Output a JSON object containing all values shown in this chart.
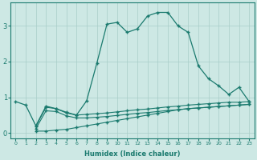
{
  "xlabel": "Humidex (Indice chaleur)",
  "line_color": "#1a7a6e",
  "bg_color": "#cde8e4",
  "grid_color": "#a8cec8",
  "xlim": [
    -0.5,
    23.5
  ],
  "ylim": [
    -0.15,
    3.65
  ],
  "xticks": [
    0,
    1,
    2,
    3,
    4,
    5,
    6,
    7,
    8,
    9,
    10,
    11,
    12,
    13,
    14,
    15,
    16,
    17,
    18,
    19,
    20,
    21,
    22,
    23
  ],
  "yticks": [
    0,
    1,
    2,
    3
  ],
  "curve1_x": [
    0,
    1,
    2,
    3,
    4,
    5,
    6,
    7,
    8,
    9,
    10,
    11,
    12,
    13,
    14,
    15,
    16,
    17,
    18,
    19,
    20,
    21,
    22,
    23
  ],
  "curve1_y": [
    0.88,
    0.78,
    0.2,
    0.75,
    0.68,
    0.58,
    0.5,
    0.9,
    1.95,
    3.05,
    3.1,
    2.82,
    2.92,
    3.28,
    3.38,
    3.38,
    3.0,
    2.82,
    1.88,
    1.52,
    1.32,
    1.08,
    1.28,
    0.88
  ],
  "curve2_x": [
    2,
    3,
    4,
    5,
    6,
    7,
    8,
    9,
    10,
    11,
    12,
    13,
    14,
    15,
    16,
    17,
    18,
    19,
    20,
    21,
    22,
    23
  ],
  "curve2_y": [
    0.18,
    0.72,
    0.68,
    0.56,
    0.5,
    0.52,
    0.54,
    0.56,
    0.59,
    0.62,
    0.65,
    0.67,
    0.7,
    0.73,
    0.75,
    0.78,
    0.8,
    0.82,
    0.84,
    0.86,
    0.86,
    0.88
  ],
  "curve3_x": [
    2,
    3,
    4,
    5,
    6,
    7,
    8,
    9,
    10,
    11,
    12,
    13,
    14,
    15,
    16,
    17,
    18,
    19,
    20,
    21,
    22,
    23
  ],
  "curve3_y": [
    0.12,
    0.62,
    0.6,
    0.48,
    0.42,
    0.42,
    0.44,
    0.46,
    0.49,
    0.52,
    0.55,
    0.57,
    0.6,
    0.63,
    0.65,
    0.68,
    0.7,
    0.72,
    0.74,
    0.76,
    0.78,
    0.8
  ],
  "curve4_x": [
    2,
    3,
    4,
    5,
    6,
    7,
    8,
    9,
    10,
    11,
    12,
    13,
    14,
    15,
    16,
    17,
    18,
    19,
    20,
    21,
    22,
    23
  ],
  "curve4_y": [
    0.05,
    0.05,
    0.08,
    0.1,
    0.15,
    0.2,
    0.25,
    0.3,
    0.35,
    0.4,
    0.45,
    0.5,
    0.55,
    0.6,
    0.65,
    0.68,
    0.7,
    0.72,
    0.74,
    0.76,
    0.78,
    0.8
  ]
}
